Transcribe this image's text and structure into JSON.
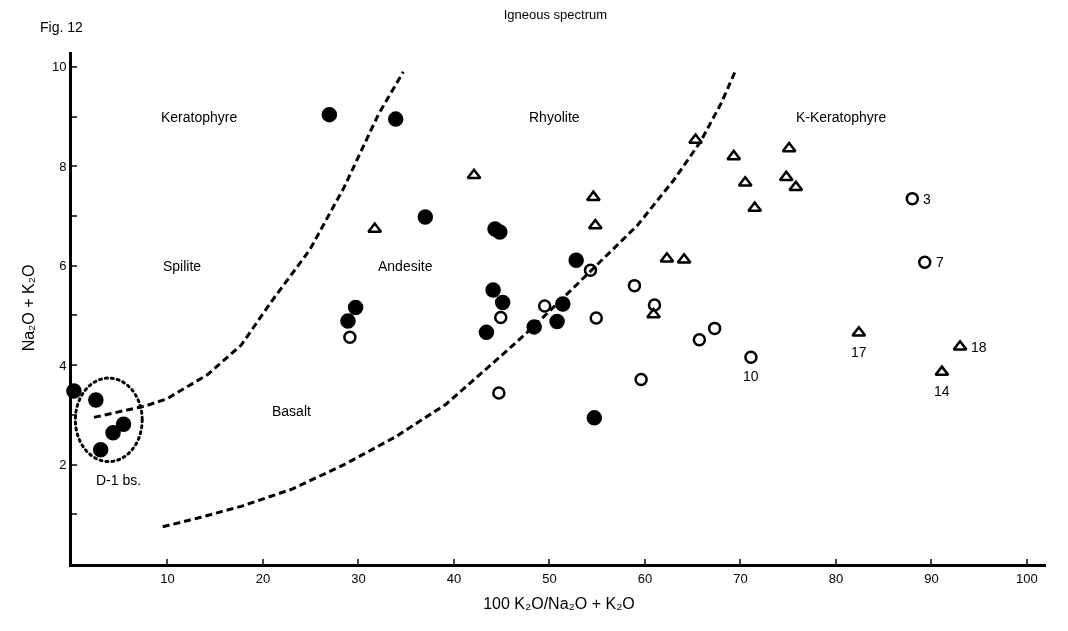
{
  "chart_data": {
    "type": "scatter",
    "title": "Igneous spectrum",
    "xlabel": "100 K₂O/Na₂O + K₂O",
    "ylabel": "Na₂O + K₂O",
    "xlim": [
      0,
      102
    ],
    "ylim": [
      0,
      10.3
    ],
    "xticks": [
      10,
      20,
      30,
      40,
      50,
      60,
      70,
      80,
      90,
      100
    ],
    "yticks": [
      {
        "value": 1,
        "label": null
      },
      2,
      {
        "value": 3,
        "label": null
      },
      4,
      {
        "value": 5,
        "label": null
      },
      6,
      {
        "value": 7,
        "label": null
      },
      8,
      {
        "value": 9,
        "label": null
      },
      10
    ],
    "grid": false,
    "legend": false,
    "annotations": [
      "Fig. 12",
      "Keratophyre",
      "Rhyolite",
      "K-Keratophyre",
      "Spilite",
      "Andesite",
      "Basalt",
      "D-1 bs.",
      {
        "text": "10",
        "x": 71.1,
        "y": 4.16
      },
      {
        "text": "3",
        "x": 88.0,
        "y": 7.35
      },
      {
        "text": "7",
        "x": 89.3,
        "y": 6.07
      },
      {
        "text": "17",
        "x": 82.4,
        "y": 4.65
      },
      {
        "text": "14",
        "x": 91.1,
        "y": 3.86
      },
      {
        "text": "18",
        "x": 93.0,
        "y": 4.37
      }
    ],
    "series": [
      {
        "type": "line",
        "color": "#000000",
        "line_style": "dashed",
        "marker": "none",
        "x": [
          2.3,
          7.7,
          9.9,
          14.2,
          17.7,
          21.0,
          24.9,
          28.5,
          32.1,
          34.7
        ],
        "values": [
          2.95,
          3.18,
          3.32,
          3.81,
          4.4,
          5.31,
          6.32,
          7.58,
          9.05,
          9.9
        ]
      },
      {
        "type": "line",
        "color": "#000000",
        "line_style": "dashed",
        "marker": "none",
        "x": [
          9.5,
          13.1,
          17.7,
          23.1,
          28.5,
          33.9,
          39.2,
          44.6,
          48.2,
          55.1,
          59.2,
          63.0,
          65.8,
          67.96,
          69.5
        ],
        "values": [
          0.75,
          0.92,
          1.16,
          1.51,
          2.0,
          2.56,
          3.22,
          4.13,
          4.75,
          6.04,
          6.81,
          7.72,
          8.49,
          9.26,
          9.93
        ]
      },
      {
        "color": "#000000",
        "marker": "circle",
        "x": [
          0.2,
          2.5,
          3.0,
          4.3,
          5.4,
          26.95,
          33.9,
          37.0,
          44.3,
          44.8,
          29.7,
          28.9,
          44.1,
          45.1,
          43.4,
          48.4,
          50.8,
          51.4,
          52.8,
          54.7
        ],
        "values": [
          3.48,
          3.3,
          2.3,
          2.64,
          2.81,
          9.04,
          8.95,
          6.98,
          6.74,
          6.68,
          5.16,
          4.89,
          5.51,
          5.26,
          4.66,
          4.77,
          4.88,
          5.23,
          6.11,
          2.94
        ]
      },
      {
        "color": "#000000",
        "marker": "circle-open",
        "x": [
          29.1,
          44.9,
          44.7,
          49.5,
          54.3,
          54.9,
          58.9,
          61.0,
          59.6,
          65.7,
          67.3,
          71.1,
          88.0,
          89.3
        ],
        "values": [
          4.56,
          4.96,
          3.44,
          5.19,
          5.91,
          4.95,
          5.6,
          5.21,
          3.71,
          4.51,
          4.74,
          4.16,
          7.35,
          6.07
        ]
      },
      {
        "color": "#000000",
        "marker": "triangle-open",
        "x": [
          31.7,
          42.1,
          54.6,
          54.8,
          60.9,
          62.3,
          64.1,
          65.3,
          69.3,
          70.5,
          71.5,
          74.8,
          75.1,
          75.8,
          82.4,
          91.1,
          93.0
        ],
        "values": [
          6.74,
          7.82,
          7.38,
          6.81,
          5.02,
          6.14,
          6.12,
          8.53,
          8.2,
          7.67,
          7.16,
          7.78,
          8.36,
          7.58,
          4.65,
          3.86,
          4.37
        ]
      }
    ]
  }
}
